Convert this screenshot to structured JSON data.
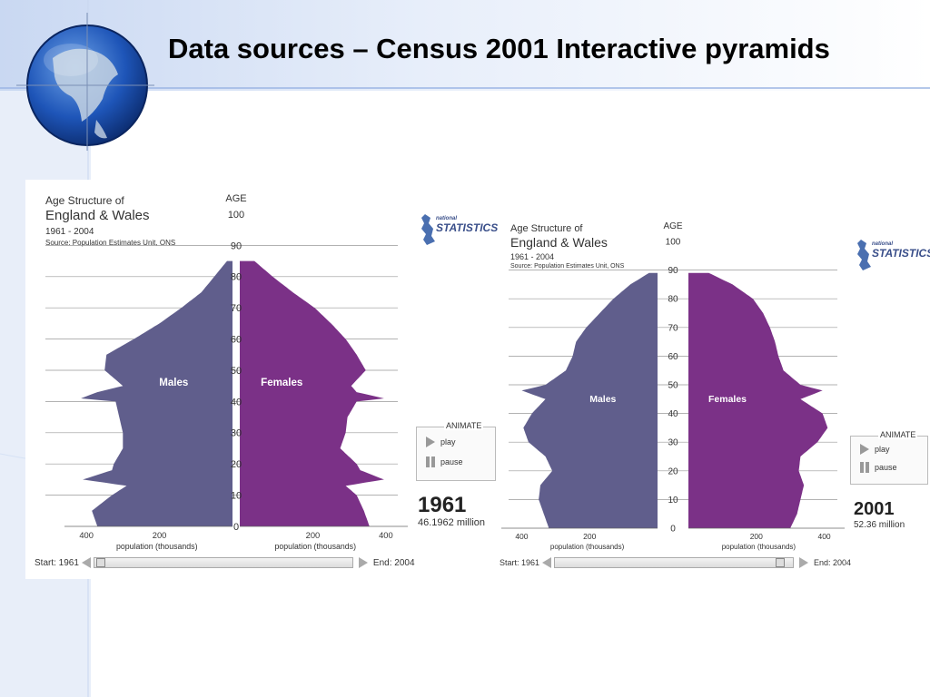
{
  "slide": {
    "title": "Data sources – Census 2001 Interactive pyramids",
    "colors": {
      "accent": "#3b67c8",
      "males": "#605e8c",
      "females": "#7b3187"
    },
    "logo_icon": "globe-icon"
  },
  "chart_data": [
    {
      "type": "population-pyramid",
      "title": "Age Structure of",
      "subtitle": "England & Wales",
      "period": "1961 - 2004",
      "source": "Source: Population Estimates Unit, ONS",
      "logo_text": "STATISTICS",
      "logo_small": "national",
      "y_axis_label": "AGE",
      "y_ticks": [
        0,
        10,
        20,
        30,
        40,
        50,
        60,
        70,
        80,
        90,
        100
      ],
      "ylim": [
        0,
        100
      ],
      "x_ticks_left": [
        "400",
        "200"
      ],
      "x_ticks_right": [
        "200",
        "400"
      ],
      "xlabel_left": "population (thousands)",
      "xlabel_right": "population (thousands)",
      "xlim": [
        0,
        460
      ],
      "series_labels": {
        "males": "Males",
        "females": "Females"
      },
      "ages": [
        0,
        5,
        10,
        13,
        15,
        18,
        20,
        25,
        30,
        35,
        40,
        41,
        43,
        45,
        50,
        55,
        60,
        65,
        70,
        75,
        80,
        85
      ],
      "males": [
        370,
        385,
        330,
        290,
        410,
        330,
        325,
        300,
        300,
        310,
        320,
        415,
        370,
        300,
        350,
        345,
        270,
        200,
        140,
        85,
        50,
        15
      ],
      "females": [
        355,
        340,
        320,
        290,
        395,
        330,
        320,
        275,
        290,
        295,
        320,
        395,
        320,
        305,
        345,
        320,
        290,
        250,
        205,
        145,
        90,
        40
      ],
      "year": "1961",
      "total_population": "46.1962 million",
      "animate_label": "ANIMATE",
      "play_label": "play",
      "pause_label": "pause",
      "start_label": "Start: 1961",
      "end_label": "End: 2004",
      "slider_position": 0.0
    },
    {
      "type": "population-pyramid",
      "title": "Age Structure of",
      "subtitle": "England & Wales",
      "period": "1961 - 2004",
      "source": "Source: Population Estimates Unit, ONS",
      "logo_text": "STATISTICS",
      "logo_small": "national",
      "y_axis_label": "AGE",
      "y_ticks": [
        0,
        10,
        20,
        30,
        40,
        50,
        60,
        70,
        80,
        90,
        100
      ],
      "ylim": [
        0,
        100
      ],
      "x_ticks_left": [
        "400",
        "200"
      ],
      "x_ticks_right": [
        "200",
        "400"
      ],
      "xlabel_left": "population (thousands)",
      "xlabel_right": "population (thousands)",
      "xlim": [
        0,
        460
      ],
      "series_labels": {
        "males": "Males",
        "females": "Females"
      },
      "ages": [
        0,
        5,
        10,
        15,
        20,
        25,
        30,
        35,
        40,
        45,
        48,
        50,
        55,
        60,
        65,
        70,
        75,
        80,
        85,
        89
      ],
      "males": [
        320,
        335,
        350,
        345,
        310,
        330,
        380,
        395,
        370,
        330,
        400,
        330,
        270,
        250,
        240,
        210,
        170,
        130,
        80,
        25
      ],
      "females": [
        300,
        320,
        330,
        340,
        325,
        330,
        380,
        410,
        395,
        330,
        395,
        330,
        280,
        265,
        255,
        240,
        220,
        190,
        130,
        60
      ],
      "year": "2001",
      "total_population": "52.36 million",
      "animate_label": "ANIMATE",
      "play_label": "play",
      "pause_label": "pause",
      "start_label": "Start: 1961",
      "end_label": "End: 2004",
      "slider_position": 0.97
    }
  ]
}
